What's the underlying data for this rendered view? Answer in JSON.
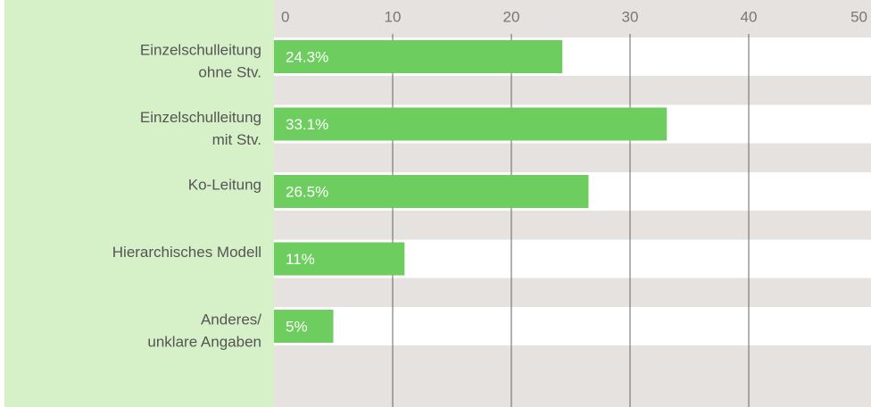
{
  "chart_data": {
    "type": "bar",
    "orientation": "horizontal",
    "categories": [
      [
        "Einzelschulleitung",
        "ohne Stv."
      ],
      [
        "Einzelschulleitung",
        "mit Stv."
      ],
      [
        "Ko-Leitung"
      ],
      [
        "Hierarchisches Modell"
      ],
      [
        "Anderes/",
        "unklare Angaben"
      ]
    ],
    "values": [
      24.3,
      33.1,
      26.5,
      11,
      5
    ],
    "value_labels": [
      "24.3%",
      "33.1%",
      "26.5%",
      "11%",
      "5%"
    ],
    "color": "#6dce5f",
    "xlim": [
      0,
      50
    ],
    "xticks": [
      0,
      10,
      20,
      30,
      40,
      50
    ],
    "grid": true
  }
}
